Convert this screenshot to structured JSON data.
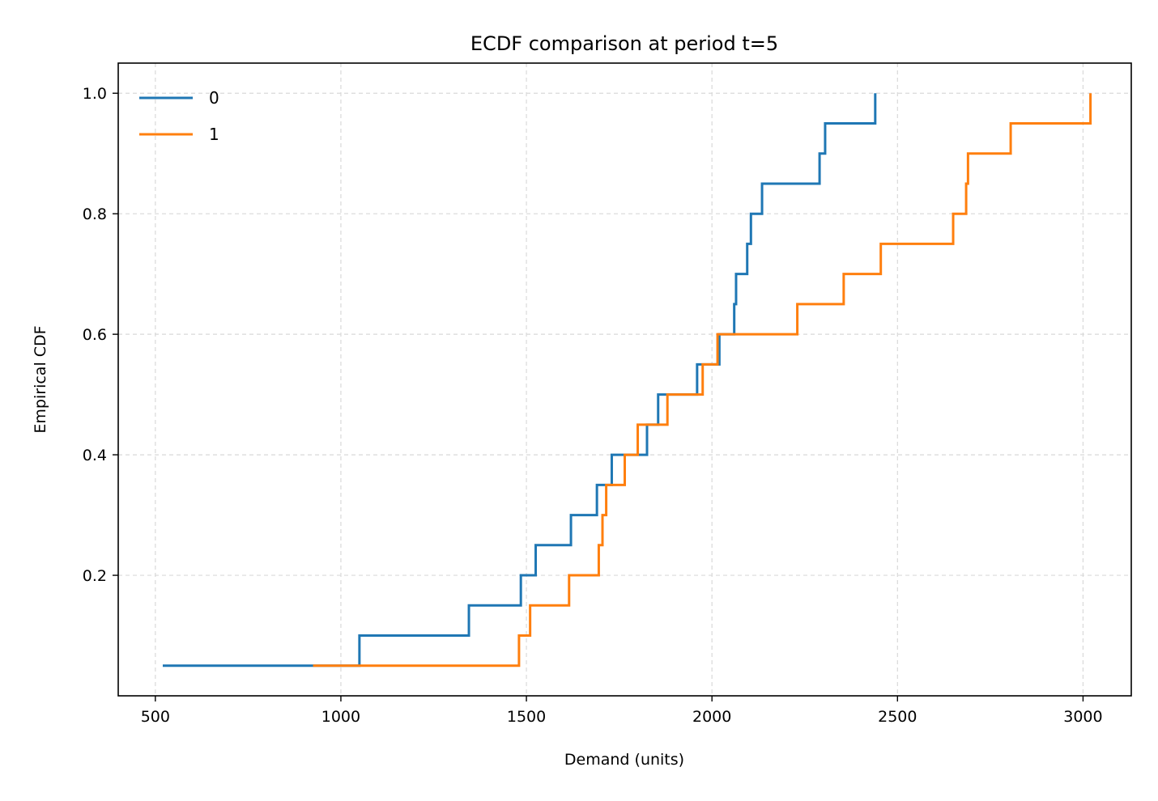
{
  "chart_data": {
    "type": "line",
    "step": "post",
    "title": "ECDF comparison at period t=5",
    "xlabel": "Demand (units)",
    "ylabel": "Empirical CDF",
    "xlim": [
      400,
      3130
    ],
    "ylim": [
      0.0,
      1.05
    ],
    "xticks": [
      500,
      1000,
      1500,
      2000,
      2500,
      3000
    ],
    "xtick_labels": [
      "500",
      "1000",
      "1500",
      "2000",
      "2500",
      "3000"
    ],
    "yticks": [
      0.2,
      0.4,
      0.6,
      0.8,
      1.0
    ],
    "ytick_labels": [
      "0.2",
      "0.4",
      "0.6",
      "0.8",
      "1.0"
    ],
    "grid": true,
    "legend_position": "top-left",
    "series": [
      {
        "name": "0",
        "color": "#1f77b4",
        "x": [
          520,
          1050,
          1345,
          1485,
          1525,
          1620,
          1690,
          1730,
          1825,
          1855,
          1960,
          2020,
          2060,
          2065,
          2095,
          2105,
          2135,
          2290,
          2305,
          2440
        ],
        "y": [
          0.05,
          0.1,
          0.15,
          0.2,
          0.25,
          0.3,
          0.35,
          0.4,
          0.45,
          0.5,
          0.55,
          0.6,
          0.65,
          0.7,
          0.75,
          0.8,
          0.85,
          0.9,
          0.95,
          1.0
        ]
      },
      {
        "name": "1",
        "color": "#ff7f0e",
        "x": [
          925,
          1480,
          1510,
          1615,
          1695,
          1705,
          1715,
          1765,
          1800,
          1880,
          1975,
          2015,
          2230,
          2355,
          2455,
          2650,
          2685,
          2690,
          2805,
          3020
        ],
        "y": [
          0.05,
          0.1,
          0.15,
          0.2,
          0.25,
          0.3,
          0.35,
          0.4,
          0.45,
          0.5,
          0.55,
          0.6,
          0.65,
          0.7,
          0.75,
          0.8,
          0.85,
          0.9,
          0.95,
          1.0
        ]
      }
    ]
  }
}
